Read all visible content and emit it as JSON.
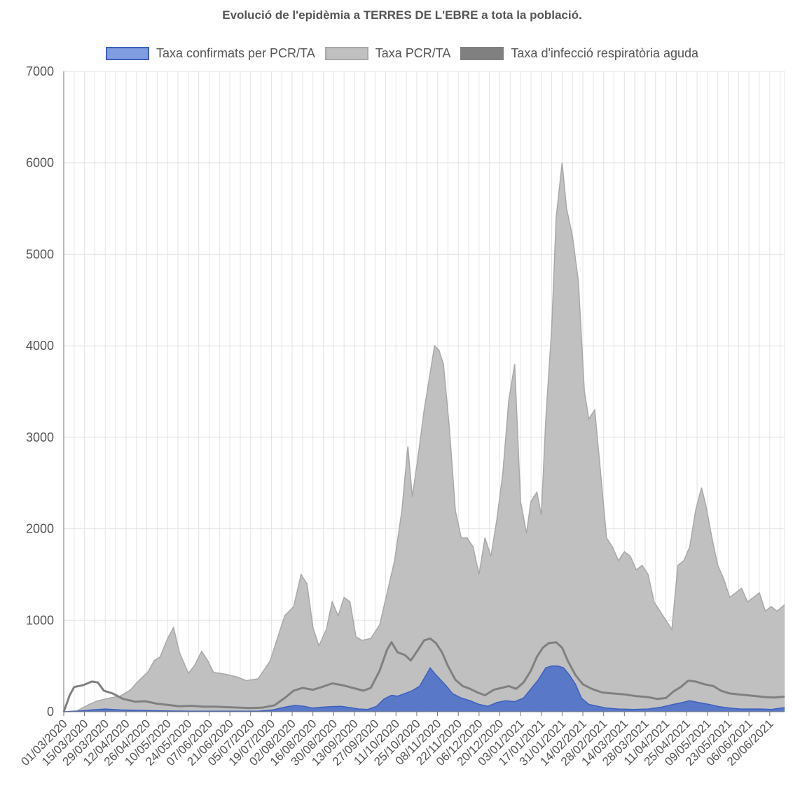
{
  "chart_data": {
    "type": "area",
    "title": "Evolució de l'epidèmia a TERRES DE L'EBRE a tota la població.",
    "xlabel": "",
    "ylabel": "",
    "ylim": [
      0,
      7000
    ],
    "yticks": [
      0,
      1000,
      2000,
      3000,
      4000,
      5000,
      6000,
      7000
    ],
    "grid": true,
    "legend_position": "top",
    "x_start": "01/03/2020",
    "x_end": "30/06/2021",
    "x_tick_labels": [
      "01/03/2020",
      "15/03/2020",
      "29/03/2020",
      "12/04/2020",
      "26/04/2020",
      "10/05/2020",
      "24/05/2020",
      "07/06/2020",
      "21/06/2020",
      "05/07/2020",
      "19/07/2020",
      "02/08/2020",
      "16/08/2020",
      "30/08/2020",
      "13/09/2020",
      "27/09/2020",
      "11/10/2020",
      "25/10/2020",
      "08/11/2020",
      "22/11/2020",
      "06/12/2020",
      "20/12/2020",
      "03/01/2021",
      "17/01/2021",
      "31/01/2021",
      "14/02/2021",
      "28/02/2021",
      "14/03/2021",
      "28/03/2021",
      "11/04/2021",
      "25/04/2021",
      "09/05/2021",
      "23/05/2021",
      "06/06/2021",
      "20/06/2021"
    ],
    "series": [
      {
        "name": "Taxa PCR/TA",
        "kind": "area",
        "color": "#c0c0c0",
        "stroke": "#a8a8a8",
        "points": [
          [
            "01/03/2020",
            0
          ],
          [
            "10/03/2020",
            10
          ],
          [
            "18/03/2020",
            80
          ],
          [
            "24/03/2020",
            120
          ],
          [
            "01/04/2020",
            150
          ],
          [
            "08/04/2020",
            170
          ],
          [
            "15/04/2020",
            240
          ],
          [
            "20/04/2020",
            330
          ],
          [
            "27/04/2020",
            440
          ],
          [
            "01/05/2020",
            560
          ],
          [
            "05/05/2020",
            600
          ],
          [
            "10/05/2020",
            800
          ],
          [
            "14/05/2020",
            920
          ],
          [
            "18/05/2020",
            650
          ],
          [
            "24/05/2020",
            420
          ],
          [
            "28/05/2020",
            500
          ],
          [
            "02/06/2020",
            660
          ],
          [
            "06/06/2020",
            560
          ],
          [
            "10/06/2020",
            430
          ],
          [
            "18/06/2020",
            410
          ],
          [
            "26/06/2020",
            380
          ],
          [
            "02/07/2020",
            340
          ],
          [
            "10/07/2020",
            360
          ],
          [
            "18/07/2020",
            550
          ],
          [
            "24/07/2020",
            850
          ],
          [
            "28/07/2020",
            1050
          ],
          [
            "03/08/2020",
            1150
          ],
          [
            "08/08/2020",
            1500
          ],
          [
            "12/08/2020",
            1400
          ],
          [
            "16/08/2020",
            920
          ],
          [
            "20/08/2020",
            720
          ],
          [
            "25/08/2020",
            900
          ],
          [
            "29/08/2020",
            1200
          ],
          [
            "02/09/2020",
            1050
          ],
          [
            "06/09/2020",
            1250
          ],
          [
            "10/09/2020",
            1200
          ],
          [
            "14/09/2020",
            820
          ],
          [
            "18/09/2020",
            780
          ],
          [
            "24/09/2020",
            800
          ],
          [
            "30/09/2020",
            950
          ],
          [
            "05/10/2020",
            1300
          ],
          [
            "10/10/2020",
            1650
          ],
          [
            "15/10/2020",
            2200
          ],
          [
            "19/10/2020",
            2900
          ],
          [
            "22/10/2020",
            2350
          ],
          [
            "26/10/2020",
            2800
          ],
          [
            "30/10/2020",
            3300
          ],
          [
            "03/11/2020",
            3700
          ],
          [
            "06/11/2020",
            4000
          ],
          [
            "09/11/2020",
            3950
          ],
          [
            "12/11/2020",
            3800
          ],
          [
            "16/11/2020",
            3100
          ],
          [
            "20/11/2020",
            2200
          ],
          [
            "24/11/2020",
            1900
          ],
          [
            "28/11/2020",
            1900
          ],
          [
            "02/12/2020",
            1800
          ],
          [
            "06/12/2020",
            1500
          ],
          [
            "10/12/2020",
            1900
          ],
          [
            "14/12/2020",
            1700
          ],
          [
            "18/12/2020",
            2100
          ],
          [
            "22/12/2020",
            2600
          ],
          [
            "26/12/2020",
            3400
          ],
          [
            "30/12/2020",
            3800
          ],
          [
            "03/01/2021",
            2300
          ],
          [
            "07/01/2021",
            1950
          ],
          [
            "10/01/2021",
            2300
          ],
          [
            "14/01/2021",
            2400
          ],
          [
            "17/01/2021",
            2150
          ],
          [
            "20/01/2021",
            3200
          ],
          [
            "24/01/2021",
            4200
          ],
          [
            "27/01/2021",
            5400
          ],
          [
            "31/01/2021",
            6000
          ],
          [
            "03/02/2021",
            5500
          ],
          [
            "07/02/2021",
            5200
          ],
          [
            "11/02/2021",
            4700
          ],
          [
            "15/02/2021",
            3500
          ],
          [
            "18/02/2021",
            3200
          ],
          [
            "22/02/2021",
            3300
          ],
          [
            "26/02/2021",
            2600
          ],
          [
            "02/03/2021",
            1900
          ],
          [
            "06/03/2021",
            1800
          ],
          [
            "10/03/2021",
            1650
          ],
          [
            "14/03/2021",
            1750
          ],
          [
            "18/03/2021",
            1700
          ],
          [
            "22/03/2021",
            1550
          ],
          [
            "26/03/2021",
            1600
          ],
          [
            "30/03/2021",
            1500
          ],
          [
            "03/04/2021",
            1200
          ],
          [
            "07/04/2021",
            1100
          ],
          [
            "11/04/2021",
            1000
          ],
          [
            "15/04/2021",
            900
          ],
          [
            "19/04/2021",
            1600
          ],
          [
            "23/04/2021",
            1650
          ],
          [
            "27/04/2021",
            1800
          ],
          [
            "01/05/2021",
            2200
          ],
          [
            "05/05/2021",
            2450
          ],
          [
            "08/05/2021",
            2250
          ],
          [
            "12/05/2021",
            1900
          ],
          [
            "16/05/2021",
            1600
          ],
          [
            "20/05/2021",
            1450
          ],
          [
            "24/05/2021",
            1250
          ],
          [
            "28/05/2021",
            1300
          ],
          [
            "01/06/2021",
            1350
          ],
          [
            "05/06/2021",
            1200
          ],
          [
            "09/06/2021",
            1250
          ],
          [
            "13/06/2021",
            1300
          ],
          [
            "17/06/2021",
            1100
          ],
          [
            "21/06/2021",
            1150
          ],
          [
            "25/06/2021",
            1100
          ],
          [
            "30/06/2021",
            1170
          ]
        ]
      },
      {
        "name": "Taxa d'infecció respiratòria aguda",
        "kind": "line",
        "color": "#808080",
        "stroke": "#808080",
        "points": [
          [
            "01/03/2020",
            0
          ],
          [
            "05/03/2020",
            180
          ],
          [
            "08/03/2020",
            270
          ],
          [
            "14/03/2020",
            290
          ],
          [
            "20/03/2020",
            330
          ],
          [
            "24/03/2020",
            320
          ],
          [
            "28/03/2020",
            230
          ],
          [
            "03/04/2020",
            200
          ],
          [
            "10/04/2020",
            140
          ],
          [
            "18/04/2020",
            110
          ],
          [
            "25/04/2020",
            115
          ],
          [
            "02/05/2020",
            90
          ],
          [
            "10/05/2020",
            75
          ],
          [
            "18/05/2020",
            60
          ],
          [
            "26/05/2020",
            65
          ],
          [
            "03/06/2020",
            55
          ],
          [
            "11/06/2020",
            55
          ],
          [
            "19/06/2020",
            50
          ],
          [
            "27/06/2020",
            45
          ],
          [
            "05/07/2020",
            40
          ],
          [
            "13/07/2020",
            45
          ],
          [
            "21/07/2020",
            70
          ],
          [
            "28/07/2020",
            150
          ],
          [
            "03/08/2020",
            230
          ],
          [
            "09/08/2020",
            260
          ],
          [
            "16/08/2020",
            240
          ],
          [
            "22/08/2020",
            270
          ],
          [
            "29/08/2020",
            310
          ],
          [
            "05/09/2020",
            290
          ],
          [
            "12/09/2020",
            260
          ],
          [
            "19/09/2020",
            230
          ],
          [
            "24/09/2020",
            260
          ],
          [
            "30/09/2020",
            450
          ],
          [
            "05/10/2020",
            680
          ],
          [
            "08/10/2020",
            760
          ],
          [
            "12/10/2020",
            650
          ],
          [
            "17/10/2020",
            620
          ],
          [
            "21/10/2020",
            560
          ],
          [
            "26/10/2020",
            680
          ],
          [
            "30/10/2020",
            780
          ],
          [
            "03/11/2020",
            800
          ],
          [
            "07/11/2020",
            750
          ],
          [
            "11/11/2020",
            650
          ],
          [
            "15/11/2020",
            500
          ],
          [
            "20/11/2020",
            350
          ],
          [
            "25/11/2020",
            280
          ],
          [
            "30/11/2020",
            250
          ],
          [
            "05/12/2020",
            210
          ],
          [
            "10/12/2020",
            180
          ],
          [
            "16/12/2020",
            240
          ],
          [
            "21/12/2020",
            260
          ],
          [
            "26/12/2020",
            280
          ],
          [
            "31/12/2020",
            250
          ],
          [
            "05/01/2021",
            320
          ],
          [
            "10/01/2021",
            450
          ],
          [
            "14/01/2021",
            600
          ],
          [
            "18/01/2021",
            700
          ],
          [
            "22/01/2021",
            750
          ],
          [
            "27/01/2021",
            760
          ],
          [
            "31/01/2021",
            700
          ],
          [
            "04/02/2021",
            550
          ],
          [
            "09/02/2021",
            400
          ],
          [
            "14/02/2021",
            300
          ],
          [
            "20/02/2021",
            250
          ],
          [
            "27/02/2021",
            210
          ],
          [
            "06/03/2021",
            200
          ],
          [
            "14/03/2021",
            190
          ],
          [
            "22/03/2021",
            170
          ],
          [
            "30/03/2021",
            160
          ],
          [
            "05/04/2021",
            140
          ],
          [
            "11/04/2021",
            150
          ],
          [
            "16/04/2021",
            220
          ],
          [
            "21/04/2021",
            270
          ],
          [
            "26/04/2021",
            340
          ],
          [
            "01/05/2021",
            330
          ],
          [
            "07/05/2021",
            300
          ],
          [
            "13/05/2021",
            280
          ],
          [
            "18/05/2021",
            230
          ],
          [
            "24/05/2021",
            200
          ],
          [
            "30/05/2021",
            190
          ],
          [
            "05/06/2021",
            180
          ],
          [
            "11/06/2021",
            170
          ],
          [
            "17/06/2021",
            160
          ],
          [
            "23/06/2021",
            155
          ],
          [
            "30/06/2021",
            165
          ]
        ]
      },
      {
        "name": "Taxa confirmats per PCR/TA",
        "kind": "area",
        "color": "#5a78c8",
        "stroke": "#3c5fc0",
        "points": [
          [
            "01/03/2020",
            0
          ],
          [
            "10/03/2020",
            5
          ],
          [
            "20/03/2020",
            20
          ],
          [
            "29/03/2020",
            30
          ],
          [
            "08/04/2020",
            20
          ],
          [
            "20/04/2020",
            15
          ],
          [
            "05/05/2020",
            10
          ],
          [
            "25/05/2020",
            5
          ],
          [
            "15/06/2020",
            5
          ],
          [
            "10/07/2020",
            5
          ],
          [
            "20/07/2020",
            20
          ],
          [
            "28/07/2020",
            50
          ],
          [
            "04/08/2020",
            70
          ],
          [
            "10/08/2020",
            60
          ],
          [
            "16/08/2020",
            40
          ],
          [
            "22/08/2020",
            50
          ],
          [
            "28/08/2020",
            55
          ],
          [
            "04/09/2020",
            60
          ],
          [
            "10/09/2020",
            45
          ],
          [
            "16/09/2020",
            30
          ],
          [
            "22/09/2020",
            25
          ],
          [
            "28/09/2020",
            60
          ],
          [
            "03/10/2020",
            140
          ],
          [
            "08/10/2020",
            180
          ],
          [
            "12/10/2020",
            170
          ],
          [
            "17/10/2020",
            200
          ],
          [
            "22/10/2020",
            230
          ],
          [
            "27/10/2020",
            280
          ],
          [
            "01/11/2020",
            420
          ],
          [
            "03/11/2020",
            480
          ],
          [
            "06/11/2020",
            420
          ],
          [
            "10/11/2020",
            350
          ],
          [
            "14/11/2020",
            280
          ],
          [
            "18/11/2020",
            200
          ],
          [
            "24/11/2020",
            150
          ],
          [
            "30/11/2020",
            120
          ],
          [
            "06/12/2020",
            80
          ],
          [
            "12/12/2020",
            60
          ],
          [
            "18/12/2020",
            100
          ],
          [
            "24/12/2020",
            120
          ],
          [
            "30/12/2020",
            110
          ],
          [
            "05/01/2021",
            150
          ],
          [
            "10/01/2021",
            250
          ],
          [
            "15/01/2021",
            350
          ],
          [
            "20/01/2021",
            480
          ],
          [
            "24/01/2021",
            500
          ],
          [
            "28/01/2021",
            500
          ],
          [
            "01/02/2021",
            480
          ],
          [
            "05/02/2021",
            400
          ],
          [
            "09/02/2021",
            300
          ],
          [
            "13/02/2021",
            150
          ],
          [
            "18/02/2021",
            80
          ],
          [
            "24/02/2021",
            60
          ],
          [
            "02/03/2021",
            40
          ],
          [
            "10/03/2021",
            30
          ],
          [
            "20/03/2021",
            25
          ],
          [
            "30/03/2021",
            30
          ],
          [
            "08/04/2021",
            50
          ],
          [
            "16/04/2021",
            80
          ],
          [
            "22/04/2021",
            100
          ],
          [
            "27/04/2021",
            120
          ],
          [
            "03/05/2021",
            100
          ],
          [
            "10/05/2021",
            80
          ],
          [
            "17/05/2021",
            55
          ],
          [
            "24/05/2021",
            40
          ],
          [
            "31/05/2021",
            30
          ],
          [
            "07/06/2021",
            30
          ],
          [
            "14/06/2021",
            30
          ],
          [
            "21/06/2021",
            25
          ],
          [
            "30/06/2021",
            45
          ]
        ]
      }
    ]
  }
}
